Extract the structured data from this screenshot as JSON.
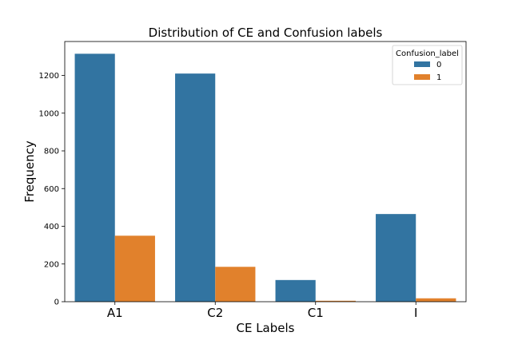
{
  "chart_data": {
    "type": "bar",
    "title": "Distribution of CE and Confusion labels",
    "xlabel": "CE Labels",
    "ylabel": "Frequency",
    "categories": [
      "A1",
      "C2",
      "C1",
      "I"
    ],
    "series": [
      {
        "name": "0",
        "color": "#3274a1",
        "values": [
          1315,
          1210,
          115,
          465
        ]
      },
      {
        "name": "1",
        "color": "#e1812c",
        "values": [
          350,
          185,
          5,
          18
        ]
      }
    ],
    "ylim": [
      0,
      1380
    ],
    "yticks": [
      0,
      200,
      400,
      600,
      800,
      1000,
      1200
    ],
    "grid": false,
    "legend": {
      "title": "Confusion_label",
      "placement": "top-right"
    }
  }
}
